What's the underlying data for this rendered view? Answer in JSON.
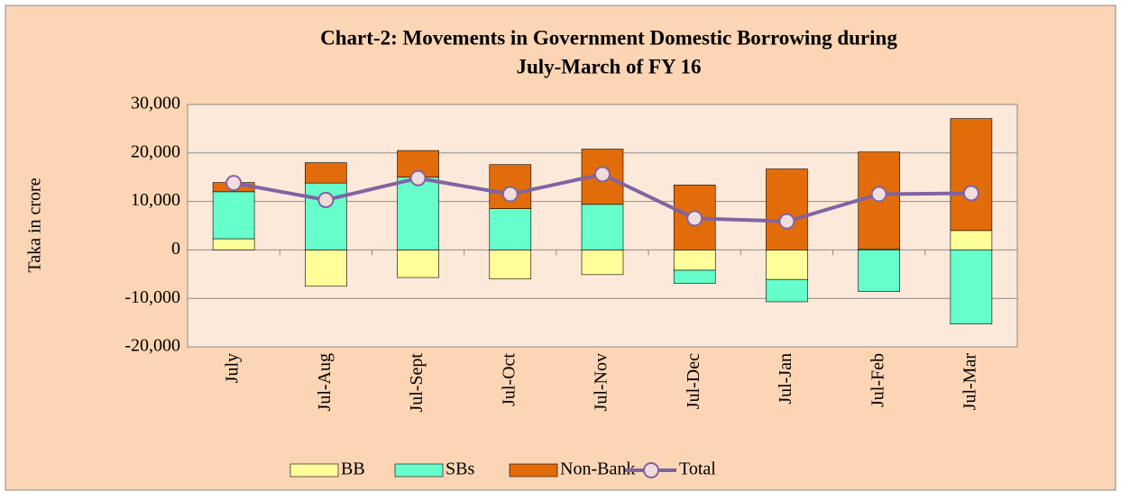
{
  "chart_data": {
    "type": "bar",
    "title": [
      "Chart-2: Movements in Government Domestic  Borrowing during",
      "July-March of FY 16"
    ],
    "y_label": "Taka in crore",
    "categories": [
      "July",
      "Jul-Aug",
      "Jul-Sept",
      "Jul-Oct",
      "Jul-Nov",
      "Jul-Dec",
      "Jul-Jan",
      "Jul-Feb",
      "Jul-Mar"
    ],
    "stacked": true,
    "series": [
      {
        "name": "BB",
        "color": "#ffff99",
        "values": [
          2300,
          -7500,
          -5700,
          -6000,
          -5100,
          -4200,
          -6100,
          200,
          4000
        ]
      },
      {
        "name": "SBs",
        "color": "#66ffcc",
        "values": [
          9700,
          13800,
          15000,
          8500,
          9400,
          -2700,
          -4600,
          -8600,
          -15300
        ]
      },
      {
        "name": "Non-Bank",
        "color": "#e36c0a",
        "values": [
          1900,
          4200,
          5500,
          9100,
          11400,
          13400,
          16700,
          20000,
          23100
        ]
      },
      {
        "name": "Total",
        "type": "line",
        "color": "#8064a2",
        "values": [
          13800,
          10300,
          14800,
          11500,
          15600,
          6500,
          5900,
          11500,
          11700
        ]
      }
    ],
    "ylim": [
      -20000,
      30000
    ],
    "yticks": [
      {
        "value": -20000,
        "label": "-20,000"
      },
      {
        "value": -10000,
        "label": "-10,000"
      },
      0,
      {
        "value": 10000,
        "label": "10,000"
      },
      {
        "value": 20000,
        "label": "20,000"
      },
      {
        "value": 30000,
        "label": "30,000"
      }
    ],
    "grid": true,
    "legend": "bottom"
  }
}
